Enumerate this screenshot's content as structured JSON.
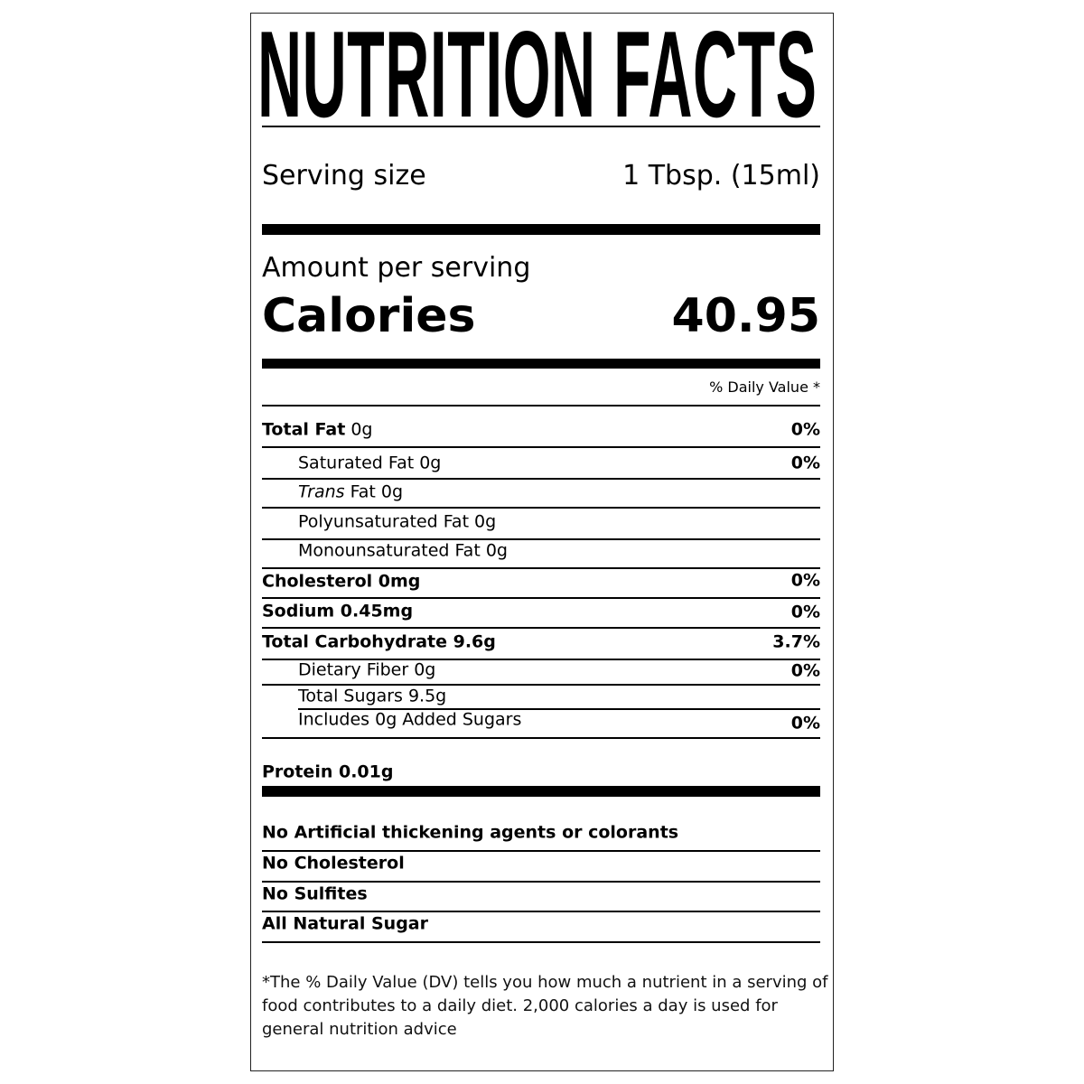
{
  "title": "NUTRITION FACTS",
  "serving": {
    "label": "Serving size",
    "value": "1 Tbsp. (15ml)"
  },
  "amount_per_serving": "Amount per serving",
  "calories": {
    "label": "Calories",
    "value": "40.95"
  },
  "daily_value_header": "% Daily Value *",
  "nutrients": [
    {
      "name": "Total Fat",
      "amount": "0g",
      "dv": "0%"
    },
    {
      "name": "Saturated Fat 0g",
      "dv": "0%"
    },
    {
      "name_italic": "Trans",
      "name": " Fat 0g"
    },
    {
      "name": "Polyunsaturated Fat 0g"
    },
    {
      "name": "Monounsaturated Fat 0g"
    },
    {
      "name": "Cholesterol 0mg",
      "dv": "0%"
    },
    {
      "name": "Sodium 0.45mg",
      "dv": "0%"
    },
    {
      "name": "Total Carbohydrate 9.6g",
      "dv": "3.7%"
    },
    {
      "name": "Dietary Fiber 0g",
      "dv": "0%"
    },
    {
      "name": "Total Sugars 9.5g"
    },
    {
      "name": "Includes 0g Added Sugars",
      "dv": "0%"
    },
    {
      "name": "Protein 0.01g"
    }
  ],
  "claims": [
    "No Artificial thickening agents or colorants",
    "No Cholesterol",
    "No Sulfites",
    "All Natural Sugar"
  ],
  "footnote": "*The % Daily Value (DV) tells you how much a nutrient in a serving of food contributes to a daily diet. 2,000 calories a day is used for general nutrition advice"
}
